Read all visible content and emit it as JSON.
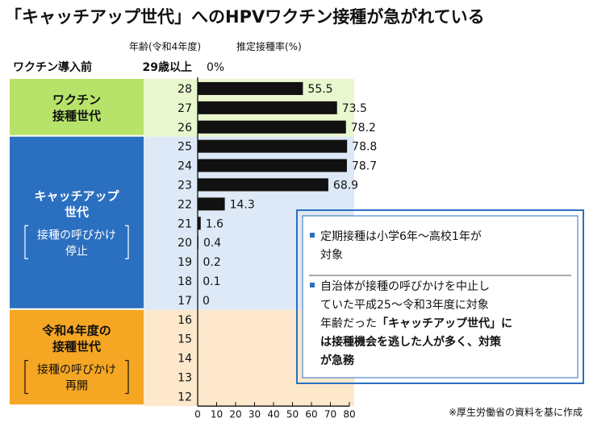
{
  "title": "「キャッチアップ世代」へのHPVワクチン接種が急がれている",
  "header": {
    "age_label": "年齢(令和4年度)",
    "rate_label": "推定接種率(%)"
  },
  "pre_vaccine": {
    "label": "ワクチン導入前",
    "age": "29歳以上",
    "value_label": "0%"
  },
  "bands": [
    {
      "name": "vaccinated",
      "lines": [
        "ワクチン",
        "接種世代"
      ],
      "sub_lines": [],
      "color": "#b7e36a",
      "text_color": "#111111",
      "light_color": "#e9f7cf"
    },
    {
      "name": "catchup",
      "lines": [
        "キャッチアップ",
        "世代"
      ],
      "sub_lines": [
        "接種の呼びかけ",
        "停止"
      ],
      "color": "#2b6fc0",
      "text_color": "#ffffff",
      "light_color": "#dde9f6"
    },
    {
      "name": "reiwa4",
      "lines": [
        "令和4年度の",
        "接種世代"
      ],
      "sub_lines": [
        "接種の呼びかけ",
        "再開"
      ],
      "color": "#f5a623",
      "text_color": "#111111",
      "light_color": "#fde8cc"
    }
  ],
  "chart_data": {
    "type": "bar",
    "orientation": "horizontal",
    "ylabel": "年齢(令和4年度)",
    "xlabel": "推定接種率(%)",
    "xlim": [
      0,
      80
    ],
    "xticks": [
      "0",
      "10",
      "20",
      "30",
      "40",
      "50",
      "60",
      "70",
      "80"
    ],
    "categories": [
      "28",
      "27",
      "26",
      "25",
      "24",
      "23",
      "22",
      "21",
      "20",
      "19",
      "18",
      "17",
      "16",
      "15",
      "14",
      "13",
      "12"
    ],
    "values": [
      55.5,
      73.5,
      78.2,
      78.8,
      78.7,
      68.9,
      14.3,
      1.6,
      0.4,
      0.2,
      0.1,
      0,
      null,
      null,
      null,
      null,
      null
    ],
    "value_labels": [
      "55.5",
      "73.5",
      "78.2",
      "78.8",
      "78.7",
      "68.9",
      "14.3",
      "1.6",
      "0.4",
      "0.2",
      "0.1",
      "0",
      "",
      "",
      "",
      "",
      ""
    ],
    "bar_color": "#111111"
  },
  "note": {
    "items": [
      {
        "lines": [
          [
            {
              "t": "定期接種は小学6年～高校1年が",
              "b": false
            }
          ],
          [
            {
              "t": "対象",
              "b": false
            }
          ]
        ]
      },
      {
        "lines": [
          [
            {
              "t": "自治体が接種の呼びかけを中止し",
              "b": false
            }
          ],
          [
            {
              "t": "ていた平成25～令和3年度に対象",
              "b": false
            }
          ],
          [
            {
              "t": "年齢だった",
              "b": false
            },
            {
              "t": "「キャッチアップ世代」に",
              "b": true
            }
          ],
          [
            {
              "t": "は接種機会を逃した人が多く、対策",
              "b": true
            }
          ],
          [
            {
              "t": "が急務",
              "b": true
            }
          ]
        ]
      }
    ],
    "bullet_color": "#2b6fc0",
    "border_color": "#2b6fc0"
  },
  "source": "※厚生労働省の資料を基に作成"
}
